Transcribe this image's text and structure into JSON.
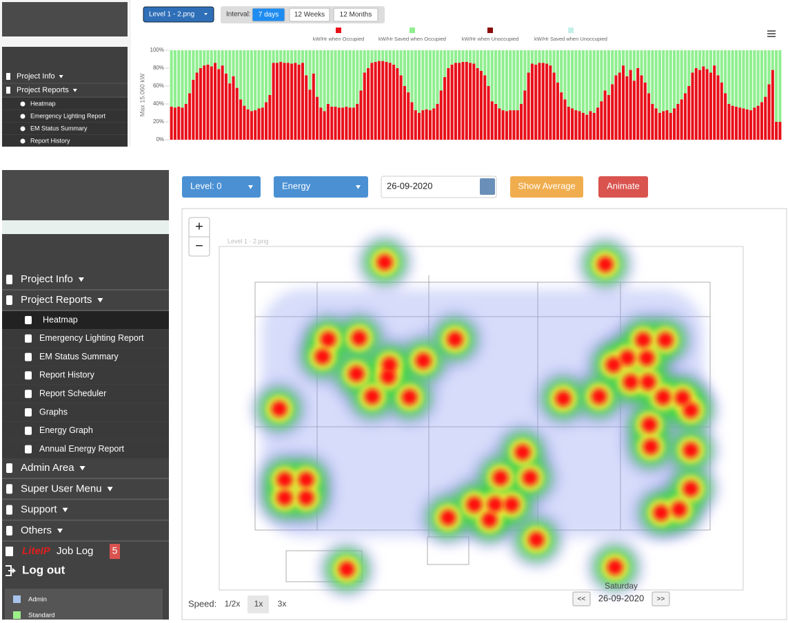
{
  "top_sidebar": {
    "main": [
      "Project Info",
      "Project Reports"
    ],
    "sub": [
      "Heatmap",
      "Emergency Lighting Report",
      "EM Status Summary",
      "Report History"
    ]
  },
  "top_toolbar": {
    "level": "Level 1 - 2.png",
    "interval_label": "Interval:",
    "intervals": [
      "7 days",
      "12 Weeks",
      "12 Months"
    ]
  },
  "chart_data": {
    "type": "bar",
    "stacked": true,
    "y_label": "Max 15.060 kW",
    "ylim": [
      0,
      100
    ],
    "yticks": [
      {
        "value": 0,
        "label": "0%"
      },
      {
        "value": 20,
        "label": "20%"
      },
      {
        "value": 40,
        "label": "40%"
      },
      {
        "value": 60,
        "label": "60%"
      },
      {
        "value": 80,
        "label": "80%"
      },
      {
        "value": 100,
        "label": "100%"
      }
    ],
    "series": [
      {
        "name": "kW/Hr when Occupied",
        "color": "#e8101a",
        "values": [
          37,
          36,
          37,
          36,
          40,
          52,
          67,
          75,
          80,
          83,
          84,
          82,
          86,
          79,
          83,
          74,
          63,
          71,
          58,
          45,
          38,
          34,
          32,
          33,
          35,
          36,
          42,
          50,
          86,
          86,
          87,
          86,
          86,
          85,
          86,
          84,
          86,
          72,
          56,
          74,
          48,
          36,
          32,
          40,
          37,
          37,
          36,
          36,
          37,
          36,
          36,
          40,
          55,
          75,
          80,
          86,
          87,
          88,
          88,
          87,
          86,
          84,
          80,
          72,
          60,
          53,
          42,
          33,
          30,
          33,
          34,
          33,
          35,
          40,
          55,
          70,
          80,
          84,
          86,
          86,
          87,
          87,
          86,
          85,
          80,
          77,
          72,
          60,
          43,
          40,
          35,
          33,
          32,
          33,
          33,
          33,
          40,
          55,
          75,
          85,
          84,
          86,
          86,
          85,
          83,
          75,
          64,
          53,
          45,
          37,
          35,
          33,
          32,
          30,
          28,
          32,
          30,
          36,
          43,
          55,
          50,
          62,
          72,
          75,
          83,
          71,
          78,
          66,
          80,
          72,
          64,
          52,
          40,
          35,
          30,
          32,
          33,
          30,
          35,
          40,
          45,
          52,
          60,
          75,
          80,
          78,
          82,
          79,
          75,
          83,
          72,
          64,
          52,
          40,
          38,
          37,
          36,
          35,
          34,
          33,
          36,
          38,
          42,
          48,
          62,
          78,
          20,
          20
        ]
      },
      {
        "name": "kW/Hr Saved when Occupied",
        "color": "#8fef8f",
        "values": [
          63,
          64,
          63,
          64,
          60,
          48,
          33,
          25,
          20,
          17,
          16,
          18,
          14,
          21,
          17,
          26,
          37,
          29,
          42,
          55,
          62,
          66,
          68,
          67,
          65,
          64,
          58,
          50,
          14,
          14,
          13,
          14,
          14,
          15,
          14,
          16,
          14,
          28,
          44,
          26,
          52,
          64,
          68,
          60,
          63,
          63,
          64,
          64,
          63,
          64,
          64,
          60,
          45,
          25,
          20,
          14,
          13,
          12,
          12,
          13,
          14,
          16,
          20,
          28,
          40,
          47,
          58,
          67,
          70,
          67,
          66,
          67,
          65,
          60,
          45,
          30,
          20,
          16,
          14,
          14,
          13,
          13,
          14,
          15,
          20,
          23,
          28,
          40,
          57,
          60,
          65,
          67,
          68,
          67,
          67,
          67,
          60,
          45,
          25,
          15,
          16,
          14,
          14,
          15,
          17,
          25,
          36,
          47,
          55,
          63,
          65,
          67,
          68,
          70,
          72,
          68,
          70,
          64,
          57,
          45,
          50,
          38,
          28,
          25,
          17,
          29,
          22,
          34,
          20,
          28,
          36,
          48,
          60,
          65,
          70,
          68,
          67,
          70,
          65,
          60,
          55,
          48,
          40,
          25,
          20,
          22,
          18,
          21,
          25,
          17,
          28,
          36,
          48,
          60,
          62,
          63,
          64,
          65,
          66,
          67,
          64,
          62,
          58,
          52,
          38,
          22,
          80,
          80
        ]
      }
    ],
    "legend_only": [
      {
        "name": "kW/Hr when Unoccupied",
        "color": "#8b0a0a"
      },
      {
        "name": "kW/Hr Saved when Unoccupied",
        "color": "#c4efe9"
      }
    ]
  },
  "sidebar": {
    "main_top": [
      "Project Info",
      "Project Reports"
    ],
    "project_reports_items": [
      "Heatmap",
      "Emergency Lighting Report",
      "EM Status Summary",
      "Report History",
      "Report Scheduler",
      "Graphs",
      "Energy Graph",
      "Annual Energy Report"
    ],
    "main_bottom": [
      "Admin Area",
      "Super User Menu",
      "Support",
      "Others"
    ],
    "job_log": {
      "brand": "LiteIP",
      "label": "Job Log",
      "badge": "5"
    },
    "logout": "Log out",
    "legend": [
      "Admin",
      "Standard"
    ]
  },
  "toolbar": {
    "level": "Level: 0",
    "mode": "Energy",
    "date": "26-09-2020",
    "show_average": "Show Average",
    "animate": "Animate"
  },
  "map": {
    "zoom_in": "+",
    "zoom_out": "−",
    "plan_title": "Level 1 - 2.png",
    "day": "Saturday",
    "date": "26-09-2020",
    "prev": "<<",
    "next": ">>",
    "speed_label": "Speed:",
    "speeds": [
      "1/2x",
      "1x",
      "3x"
    ]
  }
}
